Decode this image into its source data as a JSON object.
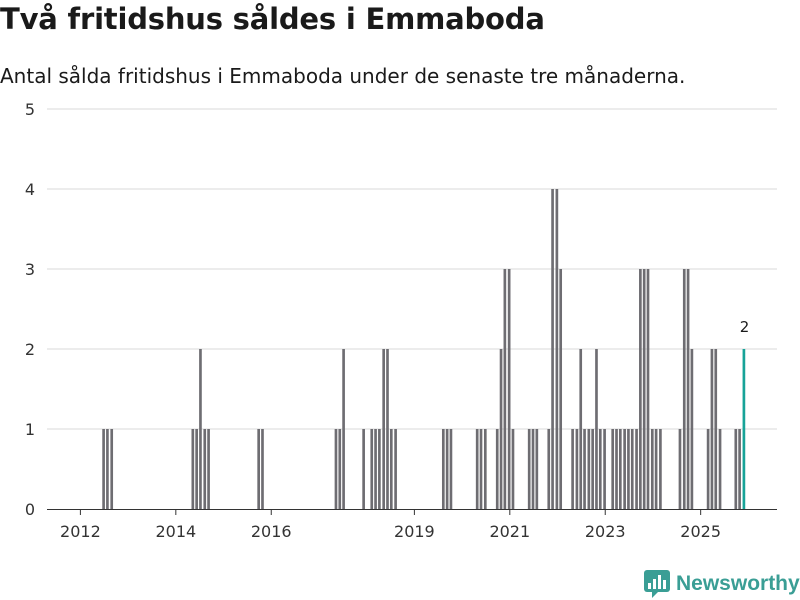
{
  "header": {
    "title": "Två fritidshus såldes i Emmaboda",
    "subtitle": "Antal sålda fritidshus i Emmaboda under de senaste tre månaderna."
  },
  "brand": {
    "name": "Newsworthy",
    "color": "#3a9e95"
  },
  "colors": {
    "bar": "#6e6d72",
    "highlight": "#17a398",
    "grid": "#d9d9d9",
    "axis": "#333333"
  },
  "chart_data": {
    "type": "bar",
    "title": "Två fritidshus såldes i Emmaboda",
    "subtitle": "Antal sålda fritidshus i Emmaboda under de senaste tre månaderna.",
    "xlabel": "",
    "ylabel": "",
    "ylim": [
      0,
      5
    ],
    "xlim": [
      2011.3,
      2026.6
    ],
    "yticks": [
      0,
      1,
      2,
      3,
      4,
      5
    ],
    "xticks": [
      {
        "value": 2012.0,
        "label": "2012"
      },
      {
        "value": 2014.0,
        "label": "2014"
      },
      {
        "value": 2016.0,
        "label": "2016"
      },
      {
        "value": 2019.0,
        "label": "2019"
      },
      {
        "value": 2021.0,
        "label": "2021"
      },
      {
        "value": 2023.0,
        "label": "2023"
      },
      {
        "value": 2025.0,
        "label": "2025"
      }
    ],
    "bar_width": 0.0833,
    "grid": true,
    "series": [
      {
        "name": "Antal sålda fritidshus",
        "points": [
          {
            "x": 2012.5,
            "y": 1
          },
          {
            "x": 2012.58,
            "y": 1
          },
          {
            "x": 2012.67,
            "y": 1
          },
          {
            "x": 2014.37,
            "y": 1
          },
          {
            "x": 2014.45,
            "y": 1
          },
          {
            "x": 2014.53,
            "y": 2
          },
          {
            "x": 2014.62,
            "y": 1
          },
          {
            "x": 2014.7,
            "y": 1
          },
          {
            "x": 2015.75,
            "y": 1
          },
          {
            "x": 2015.83,
            "y": 1
          },
          {
            "x": 2017.37,
            "y": 1
          },
          {
            "x": 2017.45,
            "y": 1
          },
          {
            "x": 2017.53,
            "y": 2
          },
          {
            "x": 2017.95,
            "y": 1
          },
          {
            "x": 2018.12,
            "y": 1
          },
          {
            "x": 2018.2,
            "y": 1
          },
          {
            "x": 2018.28,
            "y": 1
          },
          {
            "x": 2018.37,
            "y": 2
          },
          {
            "x": 2018.45,
            "y": 2
          },
          {
            "x": 2018.53,
            "y": 1
          },
          {
            "x": 2018.62,
            "y": 1
          },
          {
            "x": 2019.62,
            "y": 1
          },
          {
            "x": 2019.7,
            "y": 1
          },
          {
            "x": 2019.78,
            "y": 1
          },
          {
            "x": 2020.33,
            "y": 1
          },
          {
            "x": 2020.41,
            "y": 1
          },
          {
            "x": 2020.5,
            "y": 1
          },
          {
            "x": 2020.75,
            "y": 1
          },
          {
            "x": 2020.83,
            "y": 2
          },
          {
            "x": 2020.91,
            "y": 3
          },
          {
            "x": 2021.0,
            "y": 3
          },
          {
            "x": 2021.08,
            "y": 1
          },
          {
            "x": 2021.42,
            "y": 1
          },
          {
            "x": 2021.5,
            "y": 1
          },
          {
            "x": 2021.58,
            "y": 1
          },
          {
            "x": 2021.83,
            "y": 1
          },
          {
            "x": 2021.91,
            "y": 4
          },
          {
            "x": 2022.0,
            "y": 4
          },
          {
            "x": 2022.08,
            "y": 3
          },
          {
            "x": 2022.33,
            "y": 1
          },
          {
            "x": 2022.42,
            "y": 1
          },
          {
            "x": 2022.5,
            "y": 2
          },
          {
            "x": 2022.58,
            "y": 1
          },
          {
            "x": 2022.67,
            "y": 1
          },
          {
            "x": 2022.75,
            "y": 1
          },
          {
            "x": 2022.83,
            "y": 2
          },
          {
            "x": 2022.91,
            "y": 1
          },
          {
            "x": 2023.0,
            "y": 1
          },
          {
            "x": 2023.17,
            "y": 1
          },
          {
            "x": 2023.25,
            "y": 1
          },
          {
            "x": 2023.33,
            "y": 1
          },
          {
            "x": 2023.42,
            "y": 1
          },
          {
            "x": 2023.5,
            "y": 1
          },
          {
            "x": 2023.58,
            "y": 1
          },
          {
            "x": 2023.67,
            "y": 1
          },
          {
            "x": 2023.75,
            "y": 3
          },
          {
            "x": 2023.83,
            "y": 3
          },
          {
            "x": 2023.91,
            "y": 3
          },
          {
            "x": 2024.0,
            "y": 1
          },
          {
            "x": 2024.08,
            "y": 1
          },
          {
            "x": 2024.17,
            "y": 1
          },
          {
            "x": 2024.58,
            "y": 1
          },
          {
            "x": 2024.67,
            "y": 3
          },
          {
            "x": 2024.75,
            "y": 3
          },
          {
            "x": 2024.83,
            "y": 2
          },
          {
            "x": 2025.17,
            "y": 1
          },
          {
            "x": 2025.25,
            "y": 2
          },
          {
            "x": 2025.33,
            "y": 2
          },
          {
            "x": 2025.42,
            "y": 1
          },
          {
            "x": 2025.75,
            "y": 1
          },
          {
            "x": 2025.83,
            "y": 1
          }
        ]
      },
      {
        "name": "Senaste tre månaderna",
        "points": [
          {
            "x": 2025.92,
            "y": 2
          }
        ],
        "data_label": "2"
      }
    ]
  }
}
